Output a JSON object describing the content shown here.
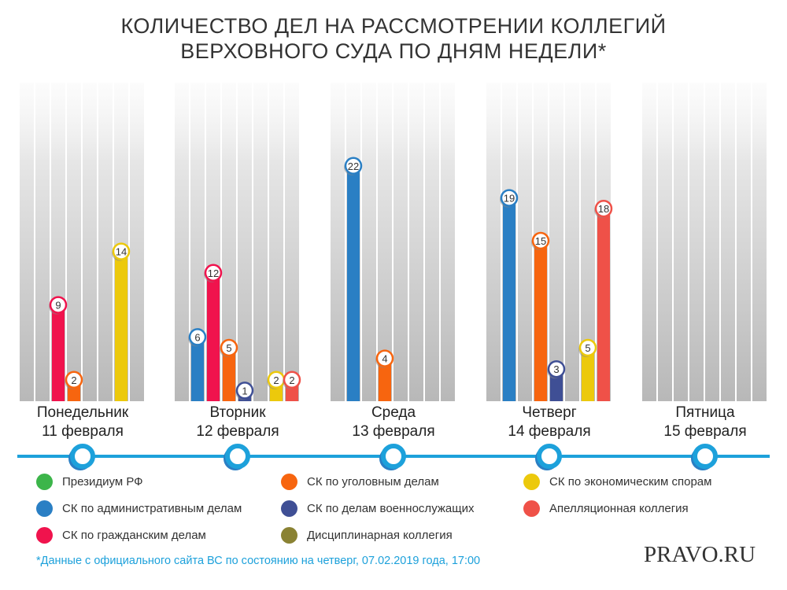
{
  "title_lines": [
    "КОЛИЧЕСТВО ДЕЛ НА РАССМОТРЕНИИ КОЛЛЕГИЙ",
    "ВЕРХОВНОГО СУДА ПО ДНЯМ НЕДЕЛИ*"
  ],
  "chart_data": {
    "type": "bar",
    "title": "Количество дел на рассмотрении коллегий Верховного суда по дням недели*",
    "categories": [
      {
        "day": "Понедельник",
        "date": "11 февраля"
      },
      {
        "day": "Вторник",
        "date": "12 февраля"
      },
      {
        "day": "Среда",
        "date": "13 февраля"
      },
      {
        "day": "Четверг",
        "date": "14 февраля"
      },
      {
        "day": "Пятница",
        "date": "15 февраля"
      }
    ],
    "series": [
      {
        "name": "Президиум РФ",
        "color": "#3cb54a",
        "values": [
          null,
          null,
          null,
          null,
          null
        ]
      },
      {
        "name": "СК по административным делам",
        "color": "#2a7fc4",
        "values": [
          null,
          6,
          22,
          19,
          null
        ]
      },
      {
        "name": "СК по гражданским делам",
        "color": "#f0134d",
        "values": [
          9,
          12,
          null,
          null,
          null
        ]
      },
      {
        "name": "СК по уголовным делам",
        "color": "#f7650f",
        "values": [
          2,
          5,
          4,
          15,
          null
        ]
      },
      {
        "name": "СК по делам военнослужащих",
        "color": "#3f4f95",
        "values": [
          null,
          1,
          null,
          3,
          null
        ]
      },
      {
        "name": "Дисциплинарная коллегия",
        "color": "#8a8233",
        "values": [
          null,
          null,
          null,
          null,
          null
        ]
      },
      {
        "name": "СК по экономическим спорам",
        "color": "#ecc90c",
        "values": [
          14,
          2,
          null,
          5,
          null
        ]
      },
      {
        "name": "Апелляционная коллегия",
        "color": "#ef5148",
        "values": [
          null,
          2,
          null,
          18,
          null
        ]
      }
    ],
    "ylim": [
      0,
      23
    ],
    "legend": "bottom"
  },
  "footnote": "*Данные с официального сайта ВС по состоянию на четверг, 07.02.2019 года, 17:00",
  "logo": "PRAVO.RU"
}
